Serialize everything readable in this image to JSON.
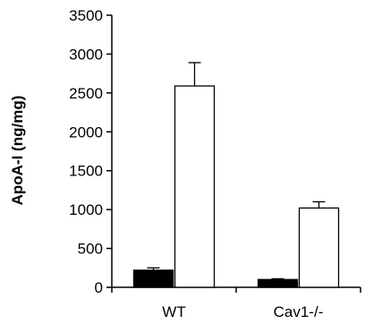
{
  "chart_data": {
    "type": "bar",
    "title": "",
    "xlabel": "",
    "ylabel": "ApoA-I (ng/mg)",
    "ylim": [
      0,
      3500
    ],
    "yticks": [
      0,
      500,
      1000,
      1500,
      2000,
      2500,
      3000,
      3500
    ],
    "categories": [
      "WT",
      "Cav1-/-"
    ],
    "series": [
      {
        "color": "#000000",
        "values": [
          220,
          100
        ],
        "error": [
          30,
          10
        ]
      },
      {
        "color": "#ffffff",
        "values": [
          2590,
          1020
        ],
        "error": [
          300,
          80
        ]
      }
    ],
    "grid": false,
    "legend": "none"
  }
}
